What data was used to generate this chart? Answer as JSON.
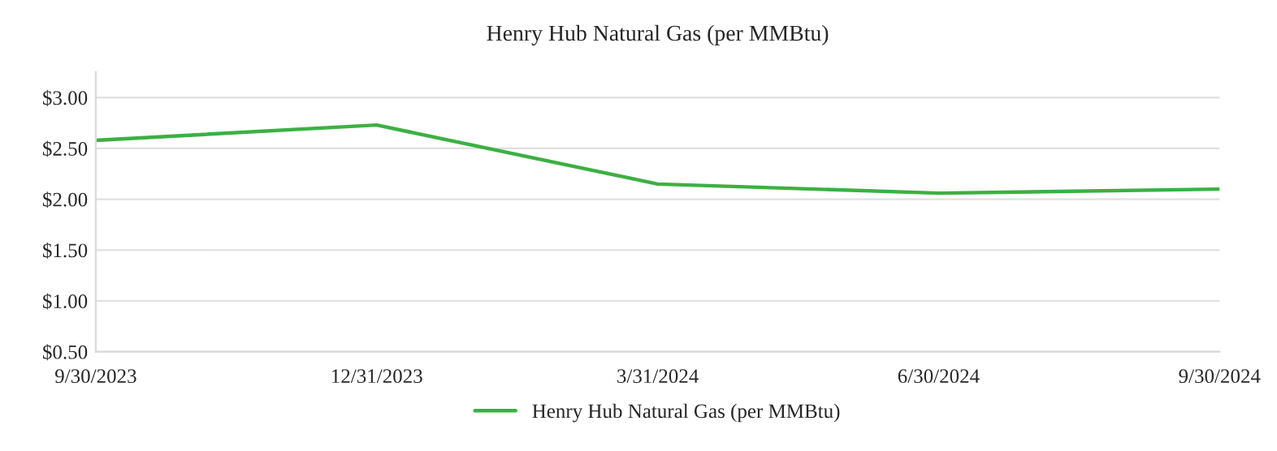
{
  "chart_data": {
    "type": "line",
    "title": "Henry Hub Natural Gas (per MMBtu)",
    "categories": [
      "9/30/2023",
      "12/31/2023",
      "3/31/2024",
      "6/30/2024",
      "9/30/2024"
    ],
    "series": [
      {
        "name": "Henry Hub Natural Gas (per MMBtu)",
        "color": "#3cb043",
        "values": [
          2.58,
          2.73,
          2.15,
          2.06,
          2.1
        ]
      }
    ],
    "ylim": [
      0.5,
      3.25
    ],
    "yticks": [
      {
        "value": 0.5,
        "label": "$0.50"
      },
      {
        "value": 1.0,
        "label": "$1.00"
      },
      {
        "value": 1.5,
        "label": "$1.50"
      },
      {
        "value": 2.0,
        "label": "$2.00"
      },
      {
        "value": 2.5,
        "label": "$2.50"
      },
      {
        "value": 3.0,
        "label": "$3.00"
      }
    ],
    "grid": "y",
    "legend": "bottom",
    "marker": "none",
    "line_style": "solid"
  }
}
